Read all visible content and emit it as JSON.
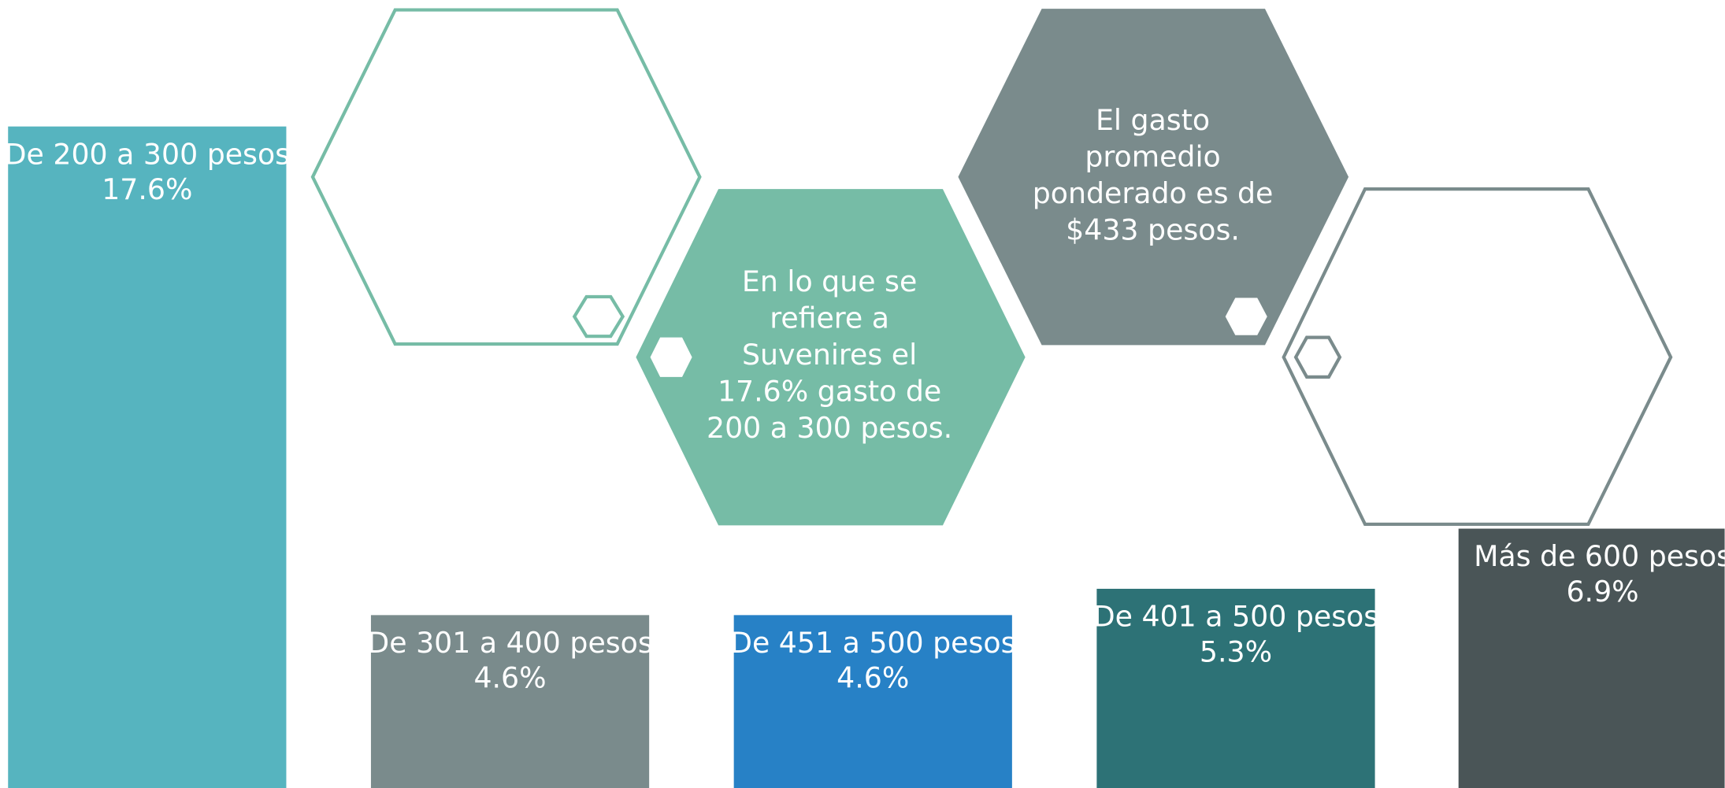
{
  "chart_data": {
    "type": "bar",
    "categories": [
      "De 200 a 300 pesos",
      "De 301 a 400 pesos",
      "De 451 a 500 pesos",
      "De 401 a 500 pesos",
      "Más de 600 pesos"
    ],
    "values": [
      17.6,
      4.6,
      4.6,
      5.3,
      6.9
    ],
    "value_labels": [
      "17.6%",
      "4.6%",
      "4.6%",
      "5.3%",
      "6.9%"
    ],
    "colors": [
      "#56b4bf",
      "#7a8b8c",
      "#2781c6",
      "#2d7276",
      "#4a5557"
    ],
    "annotations": [
      {
        "lines": [
          "En lo que se",
          "refiere a",
          "Suvenires el",
          "17.6% gasto de",
          "200 a 300 pesos."
        ]
      },
      {
        "lines": [
          "El gasto",
          "promedio",
          "ponderado es de",
          "$433 pesos."
        ]
      }
    ]
  }
}
